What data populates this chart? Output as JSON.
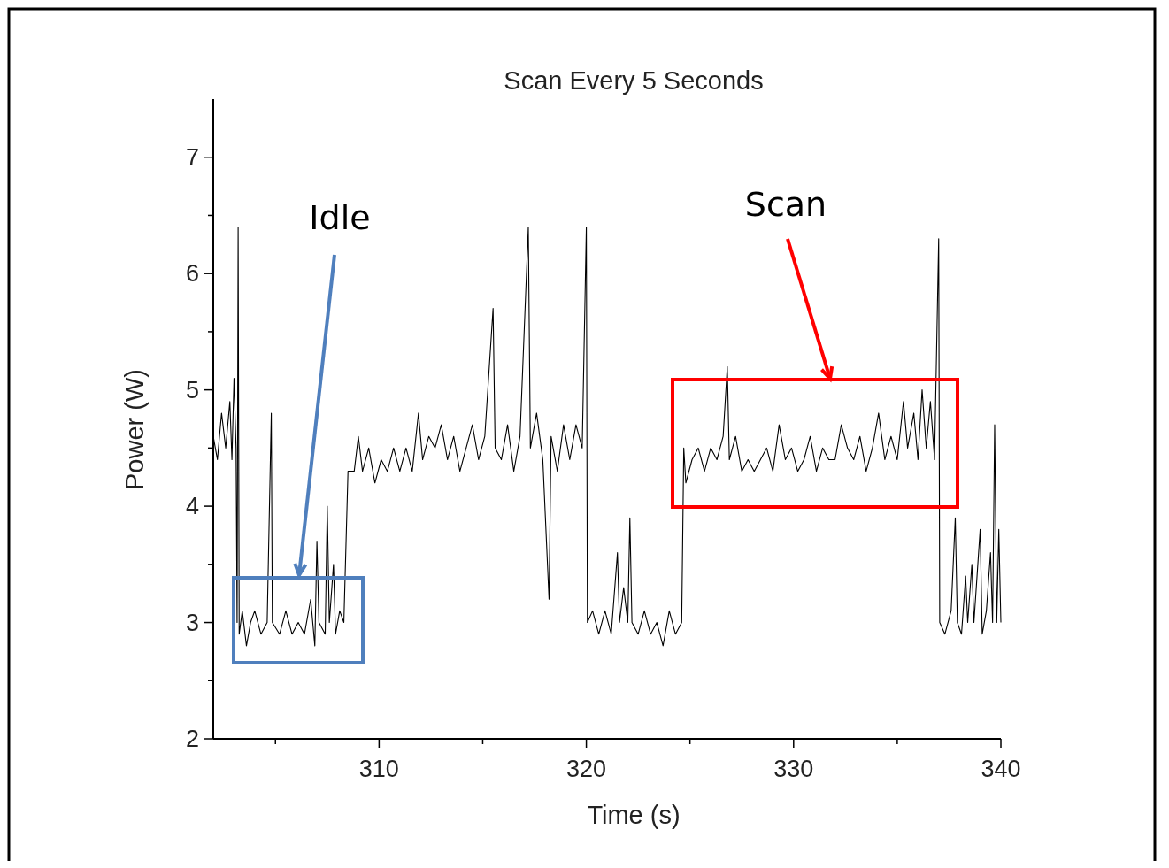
{
  "chart_data": {
    "type": "line",
    "title": "Scan Every 5 Seconds",
    "xlabel": "Time (s)",
    "ylabel": "Power (W)",
    "xlim": [
      302,
      340
    ],
    "ylim": [
      2,
      7.5
    ],
    "xticks": [
      {
        "value": 305,
        "label": null
      },
      310,
      {
        "value": 315,
        "label": null
      },
      320,
      {
        "value": 325,
        "label": null
      },
      330,
      {
        "value": 335,
        "label": null
      },
      340
    ],
    "yticks": [
      2,
      {
        "value": 2.5,
        "label": null
      },
      3,
      {
        "value": 3.5,
        "label": null
      },
      4,
      {
        "value": 4.5,
        "label": null
      },
      5,
      {
        "value": 5.5,
        "label": null
      },
      6,
      {
        "value": 6.5,
        "label": null
      },
      7
    ],
    "annotations": [
      "Idle",
      "Scan"
    ],
    "series": [
      {
        "color": "#000000",
        "x": [
          302.0,
          302.2,
          302.4,
          302.6,
          302.8,
          302.9,
          303.0,
          303.1,
          303.15,
          303.2,
          303.25,
          303.4,
          303.6,
          303.8,
          304.0,
          304.3,
          304.6,
          304.8,
          304.85,
          305.2,
          305.5,
          305.8,
          306.1,
          306.4,
          306.7,
          306.9,
          307.0,
          307.1,
          307.4,
          307.5,
          307.6,
          307.8,
          307.9,
          308.1,
          308.3,
          308.5,
          308.8,
          309.0,
          309.2,
          309.5,
          309.8,
          310.1,
          310.4,
          310.7,
          311.0,
          311.3,
          311.6,
          311.9,
          312.1,
          312.4,
          312.7,
          313.0,
          313.3,
          313.6,
          313.9,
          314.2,
          314.5,
          314.8,
          315.1,
          315.5,
          315.6,
          315.9,
          316.2,
          316.5,
          316.8,
          317.2,
          317.3,
          317.6,
          317.9,
          318.2,
          318.3,
          318.6,
          318.9,
          319.2,
          319.5,
          319.8,
          320.0,
          320.05,
          320.3,
          320.6,
          320.9,
          321.2,
          321.5,
          321.6,
          321.8,
          322.0,
          322.1,
          322.2,
          322.5,
          322.8,
          323.1,
          323.4,
          323.7,
          324.0,
          324.3,
          324.6,
          324.7,
          324.8,
          325.1,
          325.4,
          325.7,
          326.0,
          326.3,
          326.6,
          326.8,
          326.9,
          327.2,
          327.5,
          327.8,
          328.1,
          328.4,
          328.7,
          329.0,
          329.3,
          329.6,
          329.9,
          330.2,
          330.5,
          330.8,
          331.1,
          331.4,
          331.7,
          332.0,
          332.3,
          332.6,
          332.9,
          333.2,
          333.5,
          333.8,
          334.1,
          334.4,
          334.7,
          335.0,
          335.3,
          335.5,
          335.8,
          336.0,
          336.2,
          336.4,
          336.6,
          336.8,
          337.0,
          337.05,
          337.3,
          337.6,
          337.8,
          337.9,
          338.1,
          338.3,
          338.4,
          338.6,
          338.7,
          339.0,
          339.1,
          339.3,
          339.5,
          339.6,
          339.7,
          339.8,
          339.9,
          340.0
        ],
        "values": [
          4.6,
          4.4,
          4.8,
          4.5,
          4.9,
          4.4,
          5.1,
          4.5,
          3.0,
          6.4,
          2.9,
          3.1,
          2.8,
          3.0,
          3.1,
          2.9,
          3.0,
          4.8,
          3.0,
          2.9,
          3.1,
          2.9,
          3.0,
          2.9,
          3.2,
          2.8,
          3.7,
          3.0,
          2.9,
          4.0,
          3.0,
          3.5,
          2.9,
          3.1,
          3.0,
          4.3,
          4.3,
          4.6,
          4.3,
          4.5,
          4.2,
          4.4,
          4.3,
          4.5,
          4.3,
          4.5,
          4.3,
          4.8,
          4.4,
          4.6,
          4.5,
          4.7,
          4.4,
          4.6,
          4.3,
          4.5,
          4.7,
          4.4,
          4.6,
          5.7,
          4.5,
          4.4,
          4.7,
          4.3,
          4.6,
          6.4,
          4.5,
          4.8,
          4.4,
          3.2,
          4.6,
          4.3,
          4.7,
          4.4,
          4.7,
          4.5,
          6.4,
          3.0,
          3.1,
          2.9,
          3.1,
          2.9,
          3.6,
          3.0,
          3.3,
          3.0,
          3.9,
          3.0,
          2.9,
          3.1,
          2.9,
          3.0,
          2.8,
          3.1,
          2.9,
          3.0,
          4.5,
          4.2,
          4.4,
          4.5,
          4.3,
          4.5,
          4.4,
          4.6,
          5.2,
          4.4,
          4.6,
          4.3,
          4.4,
          4.3,
          4.4,
          4.5,
          4.3,
          4.7,
          4.4,
          4.5,
          4.3,
          4.4,
          4.6,
          4.3,
          4.5,
          4.4,
          4.4,
          4.7,
          4.5,
          4.4,
          4.6,
          4.3,
          4.5,
          4.8,
          4.4,
          4.6,
          4.4,
          4.9,
          4.5,
          4.8,
          4.4,
          5.0,
          4.5,
          4.9,
          4.4,
          6.3,
          3.0,
          2.9,
          3.1,
          3.9,
          3.0,
          2.9,
          3.4,
          3.0,
          3.5,
          3.0,
          3.8,
          2.9,
          3.1,
          3.6,
          3.0,
          4.7,
          3.0,
          3.8,
          3.0
        ]
      }
    ]
  }
}
